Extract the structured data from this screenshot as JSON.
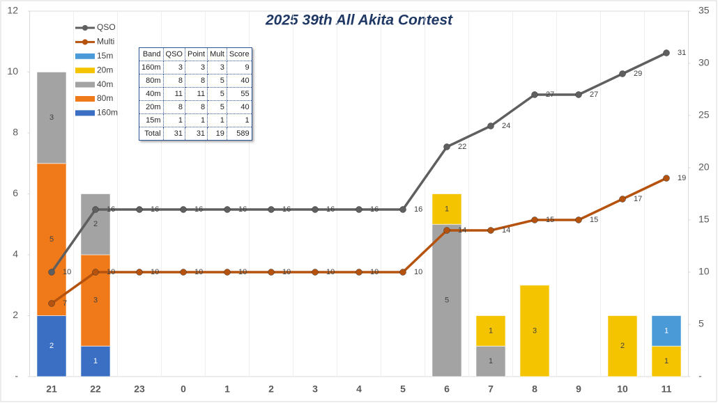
{
  "chart_data": {
    "type": "bar",
    "title": "2025 39th All Akita Contest",
    "categories": [
      "21",
      "22",
      "23",
      "0",
      "1",
      "2",
      "3",
      "4",
      "5",
      "6",
      "7",
      "8",
      "9",
      "10",
      "11"
    ],
    "series": [
      {
        "name": "160m",
        "color": "#3a6fc4",
        "values": [
          2,
          1,
          null,
          null,
          null,
          null,
          null,
          null,
          null,
          null,
          null,
          null,
          null,
          null,
          null
        ]
      },
      {
        "name": "80m",
        "color": "#f07a1a",
        "values": [
          5,
          3,
          null,
          null,
          null,
          null,
          null,
          null,
          null,
          null,
          null,
          null,
          null,
          null,
          null
        ]
      },
      {
        "name": "40m",
        "color": "#a3a3a3",
        "values": [
          3,
          2,
          null,
          null,
          null,
          null,
          null,
          null,
          null,
          5,
          1,
          null,
          null,
          null,
          null
        ]
      },
      {
        "name": "20m",
        "color": "#f5c400",
        "values": [
          null,
          null,
          null,
          null,
          null,
          null,
          null,
          null,
          null,
          1,
          1,
          3,
          null,
          2,
          1
        ]
      },
      {
        "name": "15m",
        "color": "#4a9ad8",
        "values": [
          null,
          null,
          null,
          null,
          null,
          null,
          null,
          null,
          null,
          null,
          null,
          null,
          null,
          null,
          1
        ]
      },
      {
        "name": "Multi",
        "type": "line",
        "axis": "y2",
        "color": "#b5520e",
        "values": [
          7,
          10,
          10,
          10,
          10,
          10,
          10,
          10,
          10,
          14,
          14,
          15,
          15,
          17,
          19
        ]
      },
      {
        "name": "QSO",
        "type": "line",
        "axis": "y2",
        "color": "#5f5f5f",
        "values": [
          10,
          16,
          16,
          16,
          16,
          16,
          16,
          16,
          16,
          22,
          24,
          27,
          27,
          29,
          31
        ]
      }
    ],
    "ylim": [
      0,
      12
    ],
    "yticks": [
      {
        "value": 0,
        "label": "-"
      },
      2,
      4,
      6,
      8,
      10,
      12
    ],
    "y2lim": [
      0,
      35
    ],
    "y2ticks": [
      {
        "value": 0,
        "label": "-"
      },
      5,
      10,
      15,
      20,
      25,
      30,
      35
    ],
    "legend": "top-left"
  },
  "table": {
    "header": [
      "Band",
      "QSO",
      "Point",
      "Mult",
      "Score"
    ],
    "rows": [
      [
        "160m",
        3,
        3,
        3,
        9
      ],
      [
        "80m",
        8,
        8,
        5,
        40
      ],
      [
        "40m",
        11,
        11,
        5,
        55
      ],
      [
        "20m",
        8,
        8,
        5,
        40
      ],
      [
        "15m",
        1,
        1,
        1,
        1
      ],
      [
        "Total",
        31,
        31,
        19,
        589
      ]
    ]
  }
}
